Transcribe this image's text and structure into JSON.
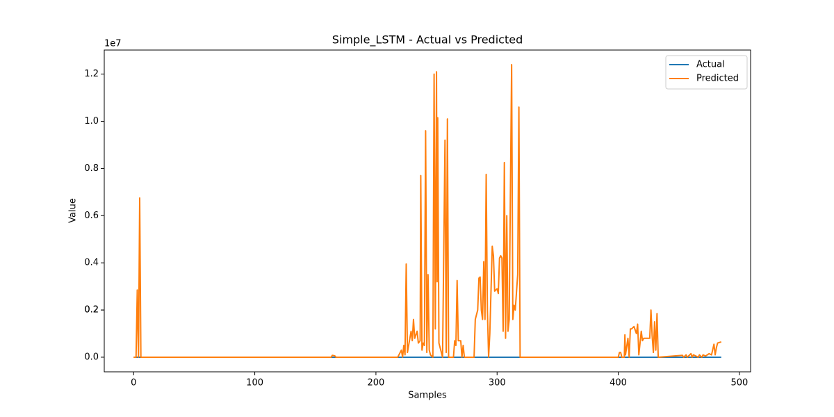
{
  "chart_data": {
    "type": "line",
    "title": "Simple_LSTM - Actual vs Predicted",
    "x_label": "Samples",
    "y_label": "Value",
    "y_offset_label": "1e7",
    "x": [
      0,
      2,
      3,
      4,
      5,
      6,
      163,
      164,
      166,
      167,
      218,
      220,
      221,
      222,
      223,
      224,
      225,
      226,
      229,
      230,
      231,
      232,
      234,
      235,
      236.5,
      237,
      238,
      239,
      240,
      241,
      242,
      243,
      244,
      245,
      247,
      248,
      249,
      250,
      250.5,
      251,
      252,
      254,
      255,
      257,
      258,
      259,
      260,
      264,
      265,
      266,
      267,
      268,
      270,
      271,
      272,
      273,
      281,
      282,
      284,
      285,
      286,
      287,
      288,
      289,
      290,
      291,
      292,
      293,
      294,
      296,
      297,
      298,
      300,
      301,
      302,
      303,
      304,
      305,
      306,
      307,
      308,
      309,
      310,
      312,
      313,
      314,
      315,
      317,
      318,
      319,
      400,
      401,
      402,
      403,
      405,
      405.5,
      406,
      408,
      409,
      410,
      411,
      413,
      415,
      416,
      417,
      419,
      420,
      421,
      423,
      426,
      427,
      428,
      429,
      430,
      431,
      432,
      433,
      453,
      454,
      456,
      457,
      460,
      461,
      462,
      466,
      467,
      469,
      470,
      472,
      475,
      477,
      479,
      480,
      481,
      482,
      485
    ],
    "series": [
      {
        "name": "Actual",
        "color": "#1f77b4",
        "values": [
          0,
          0,
          0,
          0,
          0,
          0,
          0,
          0,
          0,
          0,
          0,
          0,
          0,
          0,
          0,
          0,
          0,
          0,
          0,
          0,
          0,
          0,
          0,
          0,
          0,
          0,
          0,
          0,
          0,
          0,
          0,
          0,
          0,
          0,
          0,
          0,
          0,
          0,
          0,
          0,
          0,
          0,
          0,
          0,
          0,
          0,
          0,
          0,
          0,
          0,
          0,
          0,
          0,
          0,
          0,
          0,
          0,
          0,
          0,
          0,
          0,
          0,
          0,
          0,
          0,
          0,
          0,
          0,
          0,
          0,
          0,
          0,
          0,
          0,
          0,
          0,
          0,
          0,
          0,
          0,
          0,
          0,
          0,
          0,
          0,
          0,
          0,
          0,
          0,
          0,
          0,
          0,
          0,
          0,
          0,
          0,
          0,
          0,
          0,
          0,
          0,
          0,
          0,
          0,
          0,
          0,
          0,
          0,
          0,
          0,
          0,
          0,
          0,
          0,
          0,
          0,
          0,
          0,
          0,
          0,
          0,
          0,
          0,
          0,
          0,
          0,
          0,
          0,
          0,
          0,
          0,
          0,
          0,
          0,
          0,
          0
        ]
      },
      {
        "name": "Predicted",
        "color": "#ff7f0e",
        "values": [
          0,
          0,
          0.285,
          0,
          0.675,
          0,
          0,
          0.008,
          0.006,
          0,
          0,
          0.02,
          0.03,
          0,
          0.05,
          0.01,
          0.395,
          0.02,
          0.11,
          0.07,
          0.16,
          0.08,
          0.11,
          0.06,
          0.07,
          0.77,
          0.03,
          0.06,
          0.05,
          0.96,
          0.02,
          0.35,
          0.03,
          0.01,
          0,
          1.2,
          0.12,
          1.21,
          0.32,
          1.015,
          0.06,
          0.02,
          0,
          0.92,
          0.02,
          1.01,
          0,
          0,
          0.07,
          0.05,
          0.325,
          0.07,
          0.07,
          0,
          0.05,
          0,
          0,
          0.16,
          0.2,
          0.335,
          0.34,
          0.2,
          0.16,
          0.405,
          0.16,
          0.775,
          0.2,
          0,
          0.1,
          0.47,
          0.43,
          0.28,
          0.29,
          0.27,
          0.42,
          0.43,
          0.42,
          0.11,
          0.825,
          0.08,
          0.6,
          0.11,
          0.16,
          1.24,
          0.16,
          0.22,
          0.2,
          0.35,
          1.06,
          0,
          0,
          0.02,
          0.02,
          0,
          0,
          0.095,
          0.01,
          0.08,
          0,
          0.12,
          0.12,
          0.13,
          0.1,
          0.14,
          0.01,
          0.11,
          0.07,
          0.08,
          0.08,
          0.08,
          0.2,
          0.09,
          0.02,
          0.15,
          0.03,
          0.185,
          0,
          0.008,
          0,
          0.01,
          0,
          0.015,
          0,
          0.01,
          0,
          0.01,
          0,
          0.01,
          0.005,
          0.015,
          0.01,
          0.055,
          0.01,
          0.04,
          0.06,
          0.065
        ]
      }
    ],
    "xlim": [
      -24.25,
      509.25
    ],
    "xticks": [
      0,
      100,
      200,
      300,
      400,
      500
    ],
    "ylim": [
      -0.062,
      1.302
    ],
    "yticks": [
      {
        "value": 0,
        "label": "0.0"
      },
      0.2,
      0.4,
      0.6,
      0.8,
      {
        "value": 1,
        "label": "1.0"
      },
      0.2,
      1.2
    ],
    "legend": "upper right"
  }
}
